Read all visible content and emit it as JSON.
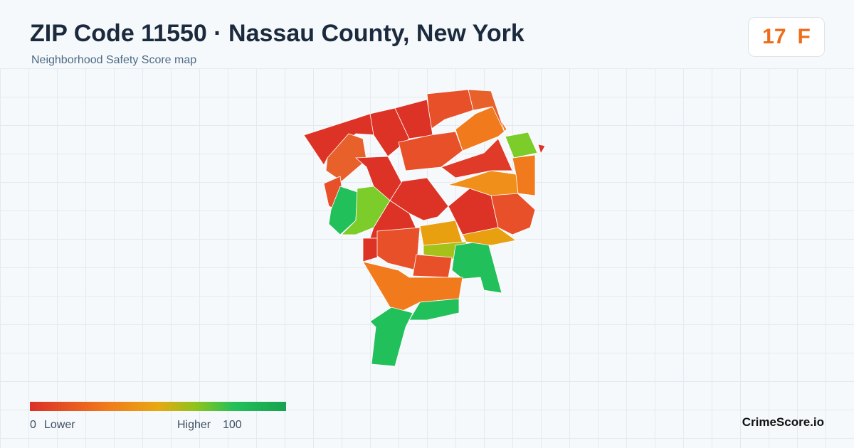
{
  "header": {
    "title": "ZIP Code 11550 · Nassau County, New York",
    "subtitle": "Neighborhood Safety Score map",
    "score": 17,
    "grade": "F"
  },
  "legend": {
    "min": 0,
    "min_label": "Lower",
    "max_label": "Higher",
    "max": 100
  },
  "footer": {
    "brand": "CrimeScore.io"
  }
}
